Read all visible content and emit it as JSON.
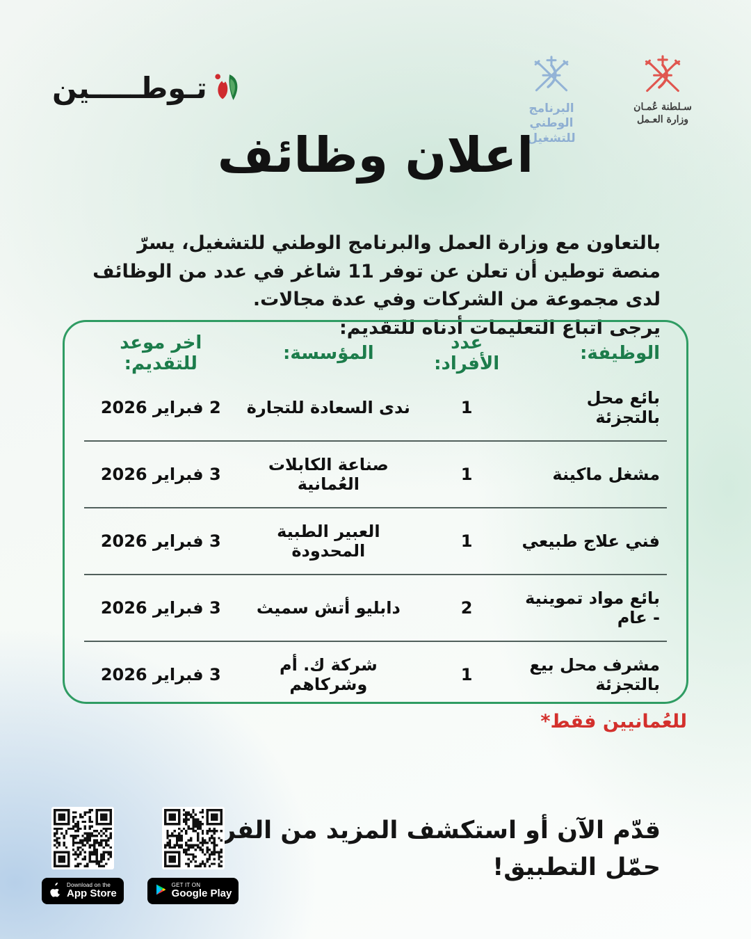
{
  "logos": {
    "tawteen": {
      "wordmark": "تـوطـــــين",
      "icon": "tawteen-flower-icon"
    },
    "national_employment_program": {
      "line1": "البرنامج الوطني",
      "line2": "للتشغيل",
      "icon": "oman-emblem-icon"
    },
    "ministry_of_labour": {
      "line1": "سـلطنة عُمـان",
      "line2": "وزارة العـمل",
      "icon": "oman-emblem-icon"
    }
  },
  "title": "اعلان وظائف",
  "intro": {
    "paragraph": "بالتعاون مع وزارة العمل والبرنامج الوطني للتشغيل، يسرّ منصة توطين أن تعلن عن توفر 11 شاغر في عدد من الوظائف لدى مجموعة من الشركات وفي عدة مجالات.",
    "instruction": "يرجى اتباع التعليمات أدناه للتقديم:"
  },
  "table": {
    "headers": [
      "الوظيفة:",
      "عدد الأفراد:",
      "المؤسسة:",
      "اخر موعد للتقديم:"
    ],
    "rows": [
      {
        "job": "بائع محل بالتجزئة",
        "count": "1",
        "company": "ندى السعادة للتجارة",
        "deadline": "2 فبراير 2026"
      },
      {
        "job": "مشغل ماكينة",
        "count": "1",
        "company": "صناعة الكابلات العُمانية",
        "deadline": "3 فبراير 2026"
      },
      {
        "job": "فني علاج طبيعي",
        "count": "1",
        "company": "العبير الطبية المحدودة",
        "deadline": "3 فبراير 2026"
      },
      {
        "job": "بائع مواد تموينية - عام",
        "count": "2",
        "company": "دابليو أتش سميث",
        "deadline": "3 فبراير 2026"
      },
      {
        "job": "مشرف محل بيع بالتجزئة",
        "count": "1",
        "company": "شركة ك. أم وشركاهم",
        "deadline": "3 فبراير 2026"
      }
    ]
  },
  "note": "للعُمانيين فقط*",
  "footer": {
    "line1": "قدّم الآن أو استكشف المزيد من الفرص.",
    "line2": "حمّل التطبيق!",
    "appstore": {
      "top": "Download on the",
      "bottom": "App Store",
      "icon": "apple-icon"
    },
    "googleplay": {
      "top": "GET IT ON",
      "bottom": "Google Play",
      "icon": "google-play-icon"
    }
  },
  "colors": {
    "box_border_green": "#2f9c63",
    "header_green": "#1c7c4b",
    "note_red": "#d3302c",
    "emblem_blue": "#93b3d6",
    "emblem_red": "#e0564f",
    "tawteen_red": "#cf2b2f",
    "tawteen_green": "#1f7a3c",
    "bg_mint": "#cfe7db",
    "bg_blue": "#b7d0e9"
  }
}
